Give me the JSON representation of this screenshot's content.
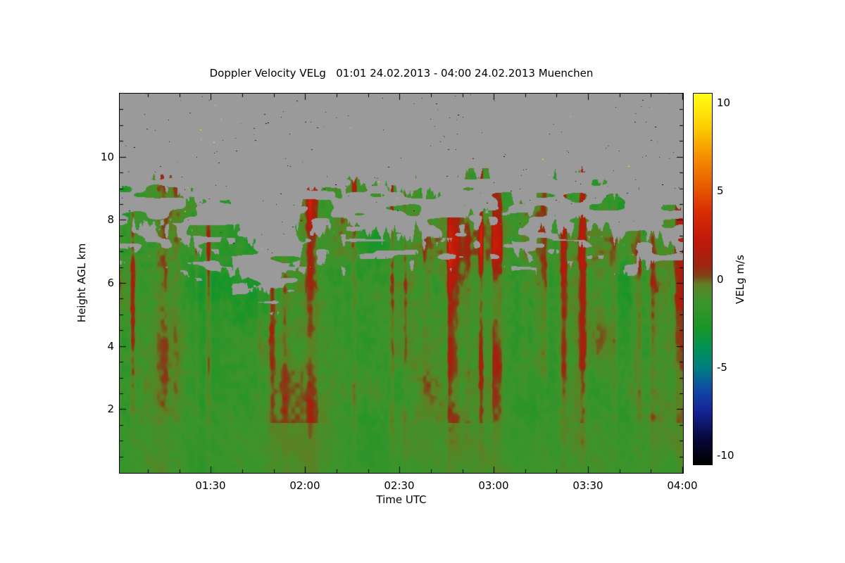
{
  "chart_data": {
    "type": "heatmap",
    "title": "Doppler Velocity VELg   01:01 24.02.2013 - 04:00 24.02.2013 Muenchen",
    "xlabel": "Time UTC",
    "ylabel": "Height AGL km",
    "x_range_utc": [
      "01:01",
      "04:00"
    ],
    "x_axis_start_minutes": 61,
    "x_axis_end_minutes": 240,
    "x_ticks": [
      {
        "minutes": 90,
        "label": "01:30"
      },
      {
        "minutes": 120,
        "label": "02:00"
      },
      {
        "minutes": 150,
        "label": "02:30"
      },
      {
        "minutes": 180,
        "label": "03:00"
      },
      {
        "minutes": 210,
        "label": "03:30"
      },
      {
        "minutes": 240,
        "label": "04:00"
      }
    ],
    "x_minor_tick_minutes": 10,
    "y_range_km": [
      0,
      12
    ],
    "y_ticks": [
      {
        "value": 2,
        "label": "2"
      },
      {
        "value": 4,
        "label": "4"
      },
      {
        "value": 6,
        "label": "6"
      },
      {
        "value": 8,
        "label": "8"
      },
      {
        "value": 10,
        "label": "10"
      }
    ],
    "y_minor_tick_km": 0.5,
    "colorbar": {
      "label": "VELg m/s",
      "range": [
        -10.5,
        10.5
      ],
      "ticks": [
        {
          "value": 10,
          "label": "10"
        },
        {
          "value": 5,
          "label": "5"
        },
        {
          "value": 0,
          "label": "0"
        },
        {
          "value": -5,
          "label": "-5"
        },
        {
          "value": -10,
          "label": "-10"
        }
      ],
      "colormap_stops": [
        [
          -10.5,
          "#000000"
        ],
        [
          -9.0,
          "#08083a"
        ],
        [
          -7.5,
          "#142396"
        ],
        [
          -6.2,
          "#0f4ba5"
        ],
        [
          -5.0,
          "#008080"
        ],
        [
          -4.0,
          "#00915a"
        ],
        [
          -2.8,
          "#199628"
        ],
        [
          -1.2,
          "#3e942c"
        ],
        [
          -0.3,
          "#5f8023"
        ],
        [
          0.15,
          "#7d4619"
        ],
        [
          0.8,
          "#a0230f"
        ],
        [
          2.2,
          "#c0190a"
        ],
        [
          3.8,
          "#d72d05"
        ],
        [
          5.2,
          "#e85a00"
        ],
        [
          7.0,
          "#f69100"
        ],
        [
          8.6,
          "#fccd00"
        ],
        [
          10.5,
          "#ffff14"
        ]
      ]
    },
    "no_data_color": "#9a9a9a",
    "field": {
      "background_velocity_ms": -1.25,
      "description": "Cloud/precipitation-filled layer from the surface up to a ragged top near 6-8 km AGL; Doppler velocities are mostly weakly negative (about -1 m/s, green) with narrow intermittent positive streaks (red/orange, up to ~+5 m/s), strongest near cloud top and around 03:00 UTC. Above cloud top there is no signal (uniform gray) with sparse single-pixel noise speckles.",
      "cloud_top_km": [
        7.8,
        7.75,
        7.7,
        7.75,
        7.8,
        7.6,
        7.45,
        7.2,
        6.9,
        7.25,
        6.5,
        6.15,
        6.0,
        5.95,
        6.1,
        6.5,
        7.3,
        7.55,
        7.6,
        7.5,
        7.45,
        7.55,
        7.5,
        7.55,
        7.45,
        7.55,
        7.5,
        7.6,
        7.7,
        7.8,
        7.95,
        8.05,
        7.95,
        7.7,
        7.15,
        6.9,
        7.5,
        7.8,
        7.9,
        7.85,
        7.75,
        7.8,
        7.55,
        7.1,
        7.35,
        7.6,
        7.45,
        7.2,
        6.9
      ],
      "noise_speckle_count": 260,
      "seed": 12345
    }
  }
}
